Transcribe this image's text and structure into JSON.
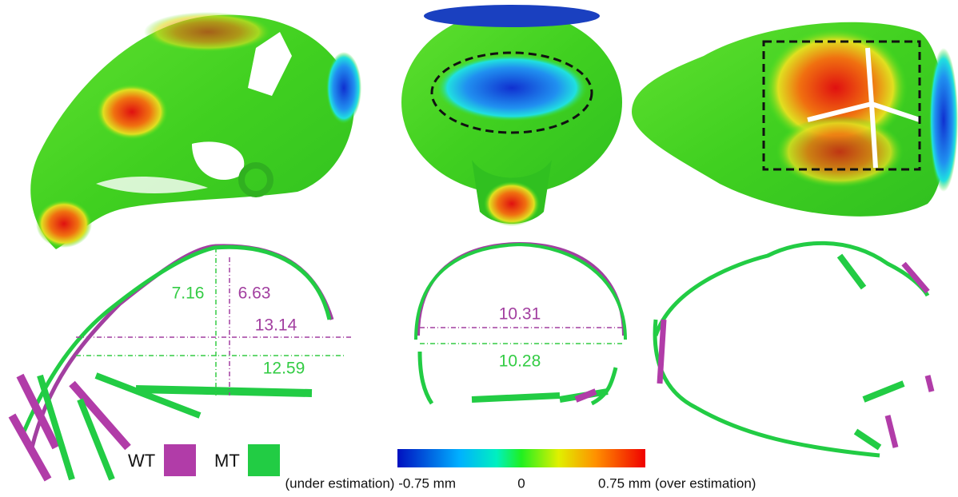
{
  "lateral_labels": [
    {
      "text": "7.16",
      "color": "#33cc44"
    },
    {
      "text": "6.63",
      "color": "#a23fa0"
    },
    {
      "text": "13.14",
      "color": "#a23fa0"
    },
    {
      "text": "12.59",
      "color": "#33cc44"
    }
  ],
  "frontal_labels": [
    {
      "text": "10.31",
      "color": "#a23fa0"
    },
    {
      "text": "10.28",
      "color": "#33cc44"
    }
  ],
  "legend": [
    {
      "label": "WT",
      "color": "#b13ca8"
    },
    {
      "label": "MT",
      "color": "#22cc44"
    }
  ],
  "colorbar": {
    "min_label": "(under estimation) -0.75 mm",
    "mid_label": "0",
    "max_label": "0.75 mm (over estimation)"
  }
}
